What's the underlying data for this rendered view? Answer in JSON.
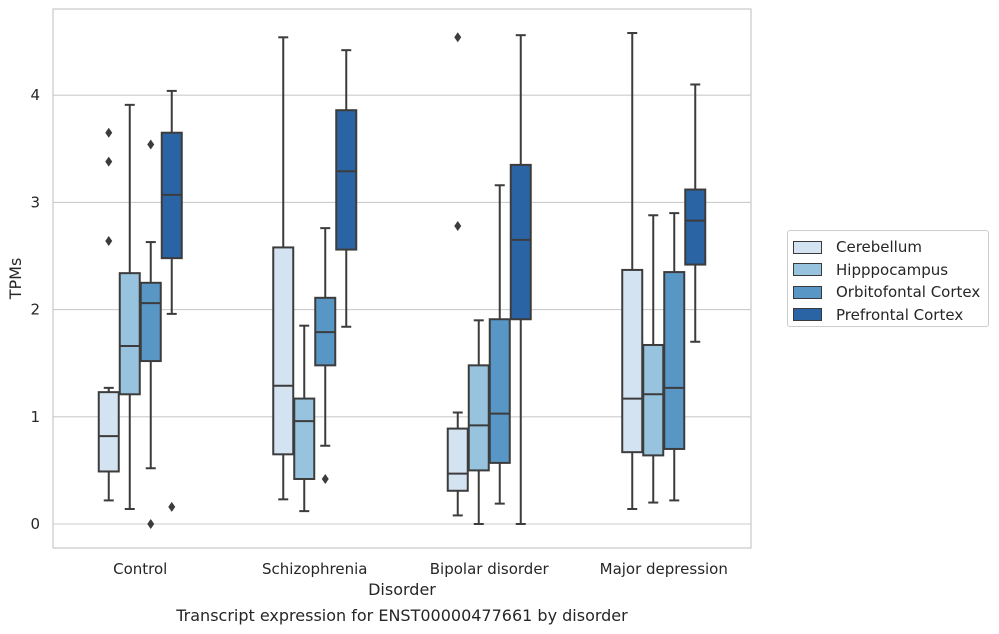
{
  "caption": "Transcript expression for ENST00000477661 by disorder",
  "chart_data": {
    "type": "box",
    "xlabel": "Disorder",
    "ylabel": "TPMs",
    "ylim": [
      -0.22,
      4.8
    ],
    "yticks": [
      0,
      1,
      2,
      3,
      4
    ],
    "grid": "horizontal",
    "legend_position": "outside right",
    "categories": [
      "Control",
      "Schizophrenia",
      "Bipolar disorder",
      "Major depression"
    ],
    "series": [
      {
        "name": "Cerebellum",
        "color": "#d4e3f1",
        "boxes": [
          {
            "whisker_low": 0.22,
            "q1": 0.49,
            "median": 0.82,
            "q3": 1.23,
            "whisker_high": 1.27,
            "outliers": [
              2.64,
              3.38,
              3.65
            ]
          },
          {
            "whisker_low": 0.23,
            "q1": 0.65,
            "median": 1.29,
            "q3": 2.58,
            "whisker_high": 4.54,
            "outliers": []
          },
          {
            "whisker_low": 0.08,
            "q1": 0.31,
            "median": 0.47,
            "q3": 0.89,
            "whisker_high": 1.04,
            "outliers": [
              2.78,
              4.54
            ]
          },
          {
            "whisker_low": 0.14,
            "q1": 0.67,
            "median": 1.17,
            "q3": 2.37,
            "whisker_high": 4.58,
            "outliers": []
          }
        ]
      },
      {
        "name": "Hipppocampus",
        "color": "#98c3df",
        "boxes": [
          {
            "whisker_low": 0.14,
            "q1": 1.21,
            "median": 1.66,
            "q3": 2.34,
            "whisker_high": 3.91,
            "outliers": []
          },
          {
            "whisker_low": 0.12,
            "q1": 0.42,
            "median": 0.96,
            "q3": 1.17,
            "whisker_high": 1.85,
            "outliers": []
          },
          {
            "whisker_low": 0.0,
            "q1": 0.5,
            "median": 0.92,
            "q3": 1.48,
            "whisker_high": 1.9,
            "outliers": []
          },
          {
            "whisker_low": 0.2,
            "q1": 0.64,
            "median": 1.21,
            "q3": 1.67,
            "whisker_high": 2.88,
            "outliers": []
          }
        ]
      },
      {
        "name": "Orbitofontal Cortex",
        "color": "#5896c5",
        "boxes": [
          {
            "whisker_low": 0.52,
            "q1": 1.52,
            "median": 2.06,
            "q3": 2.25,
            "whisker_high": 2.63,
            "outliers": [
              0.0,
              3.54
            ]
          },
          {
            "whisker_low": 0.73,
            "q1": 1.48,
            "median": 1.79,
            "q3": 2.11,
            "whisker_high": 2.76,
            "outliers": [
              0.42
            ]
          },
          {
            "whisker_low": 0.19,
            "q1": 0.57,
            "median": 1.03,
            "q3": 1.91,
            "whisker_high": 3.16,
            "outliers": []
          },
          {
            "whisker_low": 0.22,
            "q1": 0.7,
            "median": 1.27,
            "q3": 2.35,
            "whisker_high": 2.9,
            "outliers": []
          }
        ]
      },
      {
        "name": "Prefrontal Cortex",
        "color": "#2a64a4",
        "boxes": [
          {
            "whisker_low": 1.96,
            "q1": 2.48,
            "median": 3.07,
            "q3": 3.65,
            "whisker_high": 4.04,
            "outliers": [
              0.16
            ]
          },
          {
            "whisker_low": 1.84,
            "q1": 2.56,
            "median": 3.29,
            "q3": 3.86,
            "whisker_high": 4.42,
            "outliers": []
          },
          {
            "whisker_low": 0.0,
            "q1": 1.91,
            "median": 2.65,
            "q3": 3.35,
            "whisker_high": 4.56,
            "outliers": []
          },
          {
            "whisker_low": 1.7,
            "q1": 2.42,
            "median": 2.83,
            "q3": 3.12,
            "whisker_high": 4.1,
            "outliers": []
          }
        ]
      }
    ]
  }
}
